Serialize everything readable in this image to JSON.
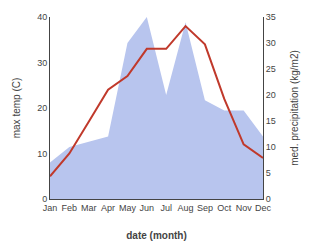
{
  "chart_data": {
    "type": "line",
    "xlabel": "date (month)",
    "ylabel": "max temp (C)",
    "y2label": "med. precipitation (kg/m2)",
    "categories": [
      "Jan",
      "Feb",
      "Mar",
      "Apr",
      "May",
      "Jun",
      "Jul",
      "Aug",
      "Sep",
      "Oct",
      "Nov",
      "Dec"
    ],
    "series": [
      {
        "type": "area",
        "axis": "y2",
        "color": "#b8c5ee",
        "values": [
          7,
          10,
          11,
          12,
          30,
          35,
          20,
          34,
          19,
          17,
          17,
          12
        ]
      },
      {
        "type": "line",
        "color": "#c0392b",
        "values": [
          5,
          10,
          17,
          24,
          27,
          33,
          33,
          38,
          34,
          22,
          12,
          9
        ]
      }
    ],
    "ylim": [
      0,
      40
    ],
    "yticks": [
      0,
      10,
      20,
      30,
      40
    ],
    "y2lim": [
      0,
      35
    ],
    "y2ticks": [
      0,
      5,
      10,
      15,
      20,
      25,
      30,
      35
    ],
    "grid": false
  }
}
